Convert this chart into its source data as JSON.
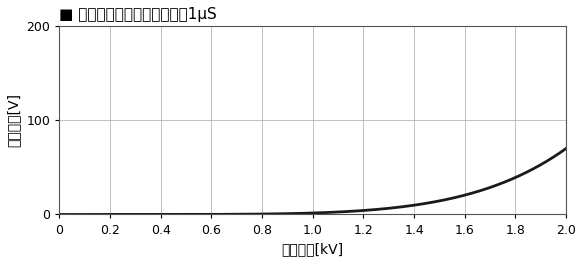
{
  "title": "■ パルス減衰特性　パルス庄1μS",
  "xlabel": "入力電圧[kV]",
  "ylabel": "出力電圧[V]",
  "xlim": [
    0,
    2.0
  ],
  "ylim": [
    0,
    200
  ],
  "xticks": [
    0,
    0.2,
    0.4,
    0.6,
    0.8,
    1.0,
    1.2,
    1.4,
    1.6,
    1.8,
    2.0
  ],
  "yticks": [
    0,
    100,
    200
  ],
  "xtick_labels": [
    "0",
    "0.2",
    "0.4",
    "0.6",
    "0.8",
    "1.0",
    "1.2",
    "1.4",
    "1.6",
    "1.8",
    "2.0"
  ],
  "ytick_labels": [
    "0",
    "100",
    "200"
  ],
  "line_color": "#1a1a1a",
  "line_width": 2.0,
  "grid_color": "#aaaaaa",
  "grid_linewidth": 0.5,
  "background_color": "#ffffff",
  "curve_power": 5.0,
  "curve_scale": 70.0,
  "title_fontsize": 11,
  "axis_label_fontsize": 10,
  "tick_fontsize": 9
}
